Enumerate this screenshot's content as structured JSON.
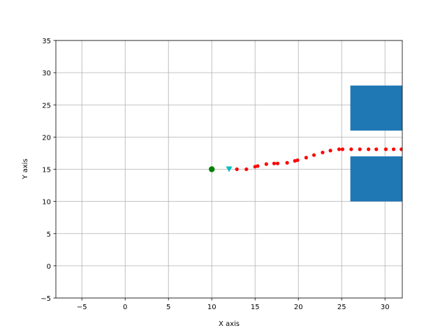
{
  "chart_data": {
    "type": "scatter",
    "title": "",
    "xlabel": "X axis",
    "ylabel": "Y axis",
    "xlim": [
      -8,
      32
    ],
    "ylim": [
      -5,
      35
    ],
    "grid": true,
    "xticks": [
      "−5",
      "0",
      "5",
      "10",
      "15",
      "20",
      "25",
      "30"
    ],
    "xtick_values": [
      -5,
      0,
      5,
      10,
      15,
      20,
      25,
      30
    ],
    "yticks": [
      "−5",
      "0",
      "5",
      "10",
      "15",
      "20",
      "25",
      "30",
      "35"
    ],
    "ytick_values": [
      -5,
      0,
      5,
      10,
      15,
      20,
      25,
      30,
      35
    ],
    "start": {
      "x": 10,
      "y": 15,
      "marker": "circle",
      "color": "#008000"
    },
    "goal": {
      "x": 12,
      "y": 15,
      "marker": "triangle-down",
      "color": "#00bfbf"
    },
    "path": {
      "color": "#ff0000",
      "points": [
        [
          12.9,
          15.0
        ],
        [
          14.0,
          15.0
        ],
        [
          15.0,
          15.4
        ],
        [
          15.3,
          15.5
        ],
        [
          16.3,
          15.8
        ],
        [
          17.2,
          15.9
        ],
        [
          17.6,
          15.9
        ],
        [
          18.7,
          16.0
        ],
        [
          19.6,
          16.3
        ],
        [
          19.9,
          16.4
        ],
        [
          20.9,
          16.8
        ],
        [
          21.8,
          17.2
        ],
        [
          22.8,
          17.6
        ],
        [
          23.7,
          17.9
        ],
        [
          24.7,
          18.1
        ],
        [
          25.1,
          18.1
        ],
        [
          26.1,
          18.1
        ],
        [
          27.1,
          18.1
        ],
        [
          28.1,
          18.1
        ],
        [
          29.0,
          18.1
        ],
        [
          30.1,
          18.1
        ],
        [
          31.0,
          18.1
        ],
        [
          31.9,
          18.1
        ]
      ]
    },
    "obstacles": {
      "color": "#1f77b4",
      "rects": [
        {
          "x0": 26,
          "x1": 32,
          "y0": 21,
          "y1": 28
        },
        {
          "x0": 26,
          "x1": 32,
          "y0": 10,
          "y1": 17
        }
      ]
    }
  }
}
